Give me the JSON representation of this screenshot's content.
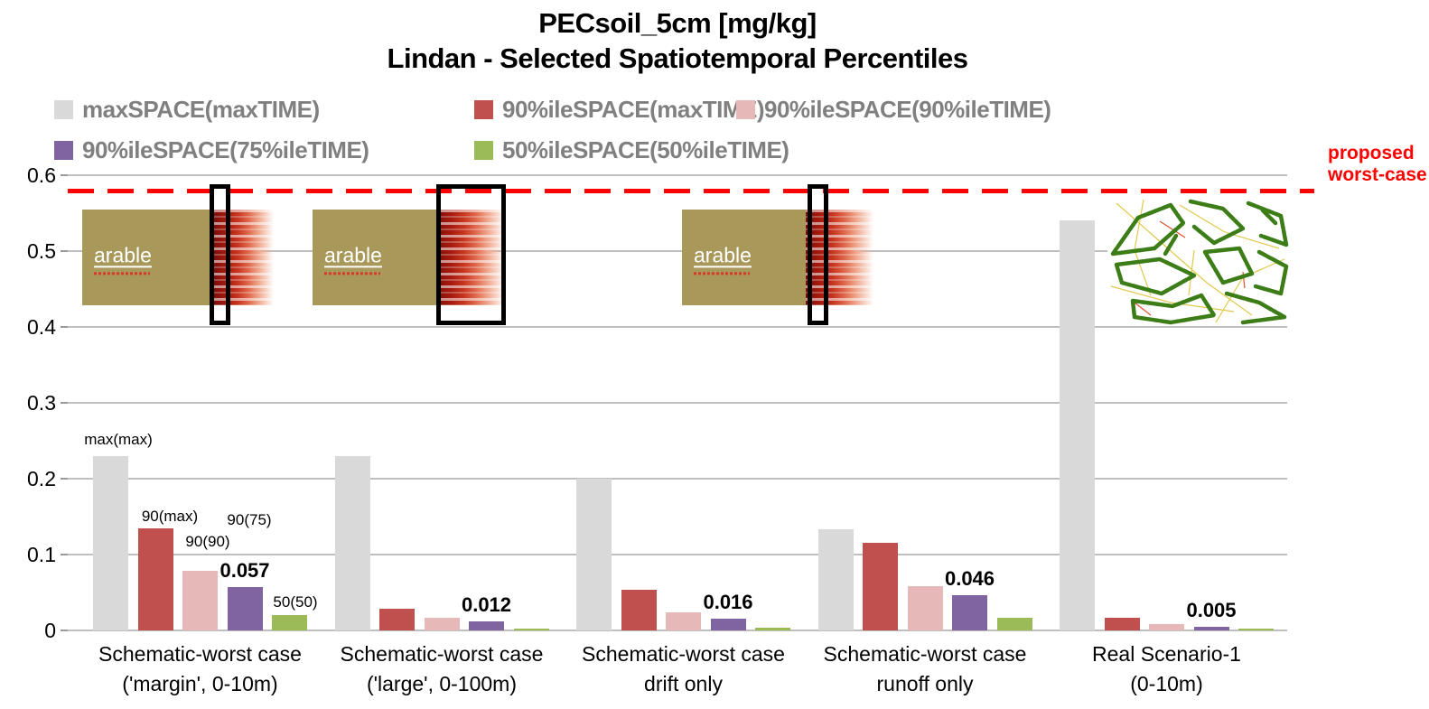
{
  "title": {
    "line1": "PECsoil_5cm [mg/kg]",
    "line2": "Lindan - Selected Spatiotemporal Percentiles"
  },
  "reference_annotation": {
    "line1": "proposed",
    "line2": "worst-case",
    "color": "#ff0000"
  },
  "legend": {
    "text_color": "#808080",
    "items": [
      {
        "label": "maxSPACE(maxTIME)",
        "color": "#d9d9d9"
      },
      {
        "label": "90%ileSPACE(maxTIME)",
        "color": "#c0504d"
      },
      {
        "label": "90%ileSPACE(90%ileTIME)",
        "color": "#e6b9b8"
      },
      {
        "label": "90%ileSPACE(75%ileTIME)",
        "color": "#8064a2"
      },
      {
        "label": "50%ileSPACE(50%ileTIME)",
        "color": "#9bbb59"
      }
    ]
  },
  "inset": {
    "arable_label": "arable"
  },
  "chart_data": {
    "type": "bar",
    "title": "PECsoil_5cm [mg/kg] — Lindan - Selected Spatiotemporal Percentiles",
    "xlabel": "",
    "ylabel": "PECsoil_5cm [mg/kg]",
    "ylim": [
      0,
      0.6
    ],
    "ytick_values": [
      0,
      0.1,
      0.2,
      0.3,
      0.4,
      0.5,
      0.6
    ],
    "ytick_labels": [
      "0",
      "0.1",
      "0.2",
      "0.3",
      "0.4",
      "0.5",
      "0.6"
    ],
    "grid": true,
    "legend_position": "top",
    "categories": [
      "Schematic-worst case\n('margin', 0-10m)",
      "Schematic-worst case\n('large', 0-100m)",
      "Schematic-worst case\ndrift only",
      "Schematic-worst case\nrunoff only",
      "Real Scenario-1\n(0-10m)"
    ],
    "series": [
      {
        "name": "maxSPACE(maxTIME)",
        "color": "#d9d9d9",
        "values": [
          0.23,
          0.23,
          0.2,
          0.133,
          0.54
        ]
      },
      {
        "name": "90%ileSPACE(maxTIME)",
        "color": "#c0504d",
        "values": [
          0.135,
          0.029,
          0.054,
          0.115,
          0.017
        ]
      },
      {
        "name": "90%ileSPACE(90%ileTIME)",
        "color": "#e6b9b8",
        "values": [
          0.078,
          0.017,
          0.024,
          0.058,
          0.008
        ]
      },
      {
        "name": "90%ileSPACE(75%ileTIME)",
        "color": "#8064a2",
        "values": [
          0.057,
          0.012,
          0.016,
          0.046,
          0.005
        ]
      },
      {
        "name": "50%ileSPACE(50%ileTIME)",
        "color": "#9bbb59",
        "values": [
          0.02,
          0.002,
          0.004,
          0.017,
          0.001
        ]
      }
    ],
    "bar_value_labels": [
      "0.057",
      "0.012",
      "0.016",
      "0.046",
      "0.005"
    ],
    "group1_point_labels": [
      "max(max)",
      "90(max)",
      "90(90)",
      "90(75)",
      "50(50)"
    ],
    "reference_line": {
      "value": 0.58,
      "style": "dashed",
      "color": "#ff0000",
      "label": "proposed worst-case"
    }
  }
}
